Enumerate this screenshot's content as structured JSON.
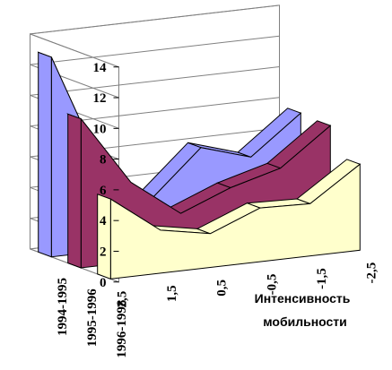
{
  "chart_data": {
    "type": "area",
    "view": "3d",
    "title": "",
    "xlabel": "Интенсивность мобильности",
    "ylabel": "",
    "categories": [
      "2,5",
      "1,5",
      "0,5",
      "-0,5",
      "-1,5",
      "-2,5"
    ],
    "series": [
      {
        "name": "1994-1995",
        "values": [
          13,
          5.5,
          3,
          6,
          5,
          7.5
        ],
        "color": "#9999ff"
      },
      {
        "name": "1995-1996",
        "values": [
          9.7,
          5.2,
          2.8,
          4.1,
          5,
          7.4
        ],
        "color": "#993366"
      },
      {
        "name": "1996-1998",
        "values": [
          5.2,
          2.8,
          2.2,
          3.5,
          3.4,
          5.6
        ],
        "color": "#ffffcc"
      }
    ],
    "ylim": [
      0,
      14
    ],
    "yticks": [
      "0",
      "2",
      "4",
      "6",
      "8",
      "10",
      "12",
      "14"
    ],
    "grid": true,
    "legend": "none"
  }
}
